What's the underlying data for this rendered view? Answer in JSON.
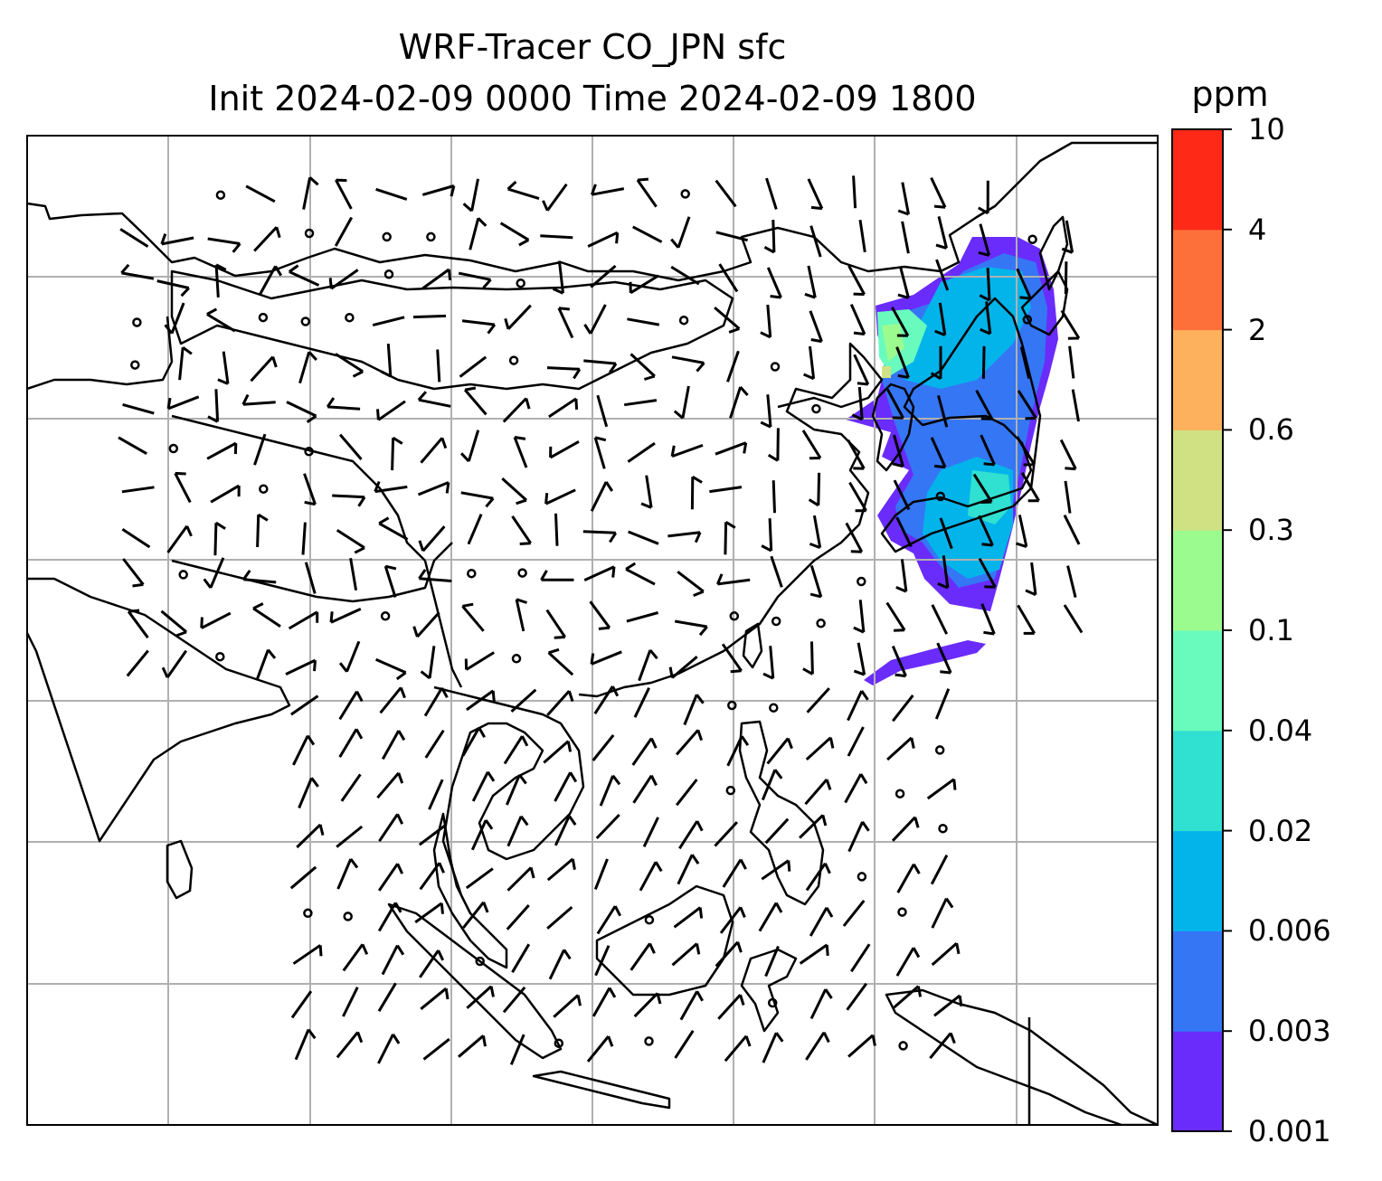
{
  "title": "WRF-Tracer CO_JPN sfc",
  "subtitle": "Init 2024-02-09 0000 Time 2024-02-09 1800",
  "colorbar": {
    "unit": "ppm",
    "ticks": [
      "0.001",
      "0.003",
      "0.006",
      "0.02",
      "0.04",
      "0.1",
      "0.3",
      "0.6",
      "2",
      "4",
      "10"
    ],
    "colors": [
      "#6a2cfb",
      "#3576f5",
      "#03b4ea",
      "#30e0d1",
      "#68fbbd",
      "#9cfb8f",
      "#d0e184",
      "#fdb15d",
      "#fe7039",
      "#fe2a17"
    ]
  },
  "map": {
    "gridlines": true,
    "grid_color": "#b0b0b0",
    "coastline_color": "#000000",
    "field": "CO tracer concentration at surface",
    "wind_symbols": "barbs"
  }
}
